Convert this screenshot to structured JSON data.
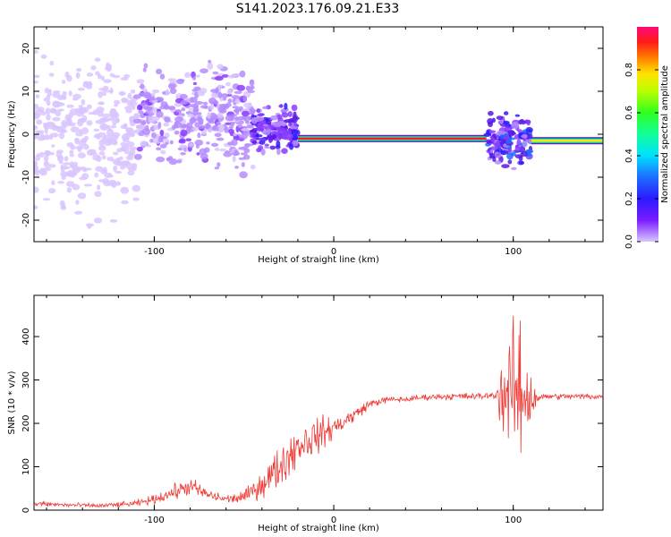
{
  "title": "S141.2023.176.09.21.E33",
  "colors": {
    "snr_line": "#ef3a35",
    "spectrogram_main": "#5a17e6",
    "spectrogram_faint": "#d9c6ff",
    "background": "#ffffff"
  },
  "chart_data": [
    {
      "type": "heatmap",
      "title": "S141.2023.176.09.21.E33",
      "xlabel": "Height of straight line (km)",
      "ylabel": "Frequency (Hz)",
      "xlim": [
        -167,
        150
      ],
      "ylim": [
        -25,
        25
      ],
      "x_ticks": [
        "-100",
        "0",
        "100"
      ],
      "x_tick_values": [
        -100,
        0,
        100
      ],
      "y_ticks": [
        "-20",
        "-10",
        "0",
        "10",
        "20"
      ],
      "y_tick_values": [
        -20,
        -10,
        0,
        10,
        20
      ],
      "colorbar": {
        "label": "Normalized spectral amplitude",
        "range": [
          0,
          1
        ],
        "ticks": [
          "0.0",
          "0.2",
          "0.4",
          "0.6",
          "0.8"
        ],
        "tick_values": [
          0.0,
          0.2,
          0.4,
          0.6,
          0.8
        ],
        "colormap": "rainbow (violet → blue → cyan → green → yellow → red → magenta)"
      },
      "features": [
        {
          "x_range": [
            -167,
            -110
          ],
          "freq_spread": [
            -25,
            25
          ],
          "amplitude": 0.05
        },
        {
          "x_range": [
            -110,
            -45
          ],
          "freq_spread": [
            -12,
            20
          ],
          "amplitude": 0.15
        },
        {
          "x_range": [
            -45,
            -20
          ],
          "freq_spread": [
            -6,
            8
          ],
          "amplitude": 0.3
        },
        {
          "x_range": [
            -20,
            85
          ],
          "freq_center": -1,
          "amplitude": 0.95
        },
        {
          "x_range": [
            85,
            110
          ],
          "freq_spread": [
            -9,
            7
          ],
          "amplitude": 0.4
        },
        {
          "x_range": [
            110,
            150
          ],
          "freq_center": -1.5,
          "amplitude": 0.7
        }
      ]
    },
    {
      "type": "line",
      "xlabel": "Height of straight line (km)",
      "ylabel": "SNR (10 * v/v)",
      "xlim": [
        -167,
        150
      ],
      "ylim": [
        0,
        495
      ],
      "x_ticks": [
        "-100",
        "0",
        "100"
      ],
      "x_tick_values": [
        -100,
        0,
        100
      ],
      "y_ticks": [
        "0",
        "100",
        "200",
        "300",
        "400"
      ],
      "y_tick_values": [
        0,
        100,
        200,
        300,
        400
      ],
      "series": [
        {
          "x": [
            -167,
            -150,
            -130,
            -110,
            -100,
            -90,
            -80,
            -70,
            -60,
            -50,
            -40,
            -30,
            -20,
            -10,
            0,
            10,
            20,
            30,
            40,
            50,
            60,
            70,
            80,
            90,
            95,
            100,
            105,
            110,
            115,
            120,
            130,
            140,
            150
          ],
          "y": [
            15,
            12,
            10,
            15,
            25,
            40,
            55,
            35,
            25,
            30,
            60,
            100,
            150,
            170,
            190,
            215,
            245,
            255,
            255,
            260,
            262,
            262,
            262,
            265,
            270,
            270,
            265,
            262,
            260,
            262,
            262,
            262,
            262
          ],
          "noise": [
            10,
            8,
            8,
            10,
            15,
            25,
            30,
            20,
            15,
            20,
            45,
            70,
            70,
            60,
            40,
            25,
            15,
            10,
            10,
            10,
            10,
            12,
            12,
            10,
            180,
            220,
            220,
            100,
            10,
            10,
            10,
            10,
            10
          ]
        }
      ]
    }
  ]
}
